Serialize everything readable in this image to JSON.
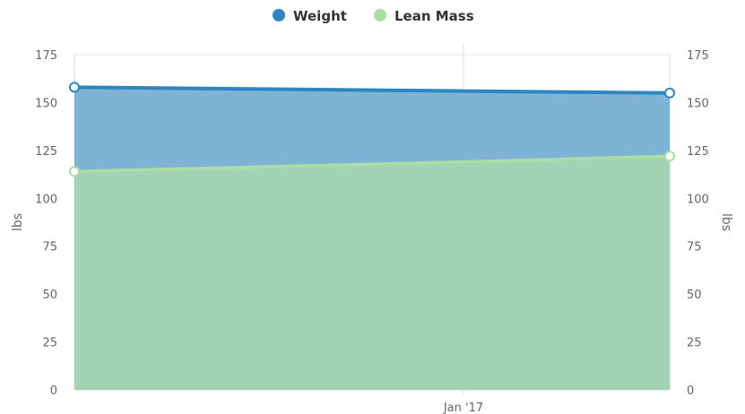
{
  "chart_data": {
    "type": "area",
    "x": [
      "",
      "Jan '17",
      ""
    ],
    "series": [
      {
        "name": "Weight",
        "values": [
          158,
          156,
          155
        ],
        "color": "#2e86c1",
        "fill": "#7fb3d5"
      },
      {
        "name": "Lean Mass",
        "values": [
          114,
          119,
          122
        ],
        "color": "#abdda4",
        "fill": "#a3d3b5"
      }
    ],
    "ylim": [
      0,
      175
    ],
    "yticks": [
      0,
      25,
      50,
      75,
      100,
      125,
      150,
      175
    ],
    "ylabel_left": "lbs",
    "ylabel_right": "lbs",
    "grid": true,
    "legend_position": "top-center"
  }
}
